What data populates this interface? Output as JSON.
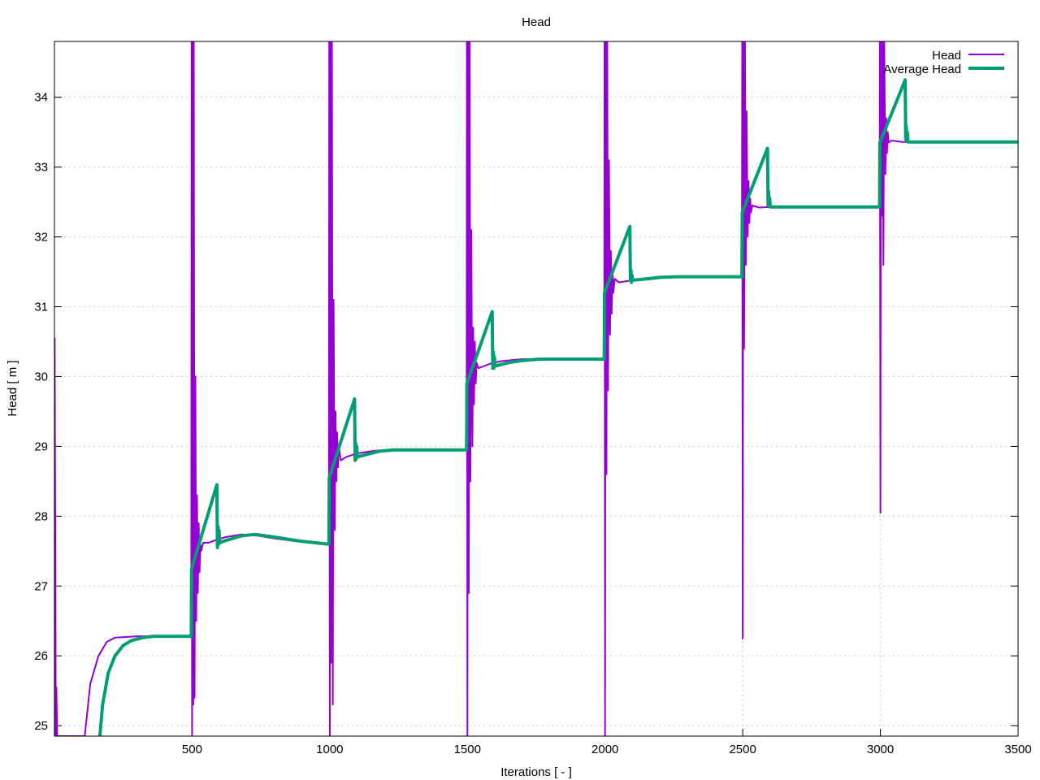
{
  "chart_data": {
    "type": "line",
    "title": "Head",
    "xlabel": "Iterations [ - ]",
    "ylabel": "Head [ m ]",
    "xlim": [
      0,
      3500
    ],
    "ylim": [
      24.85,
      34.8
    ],
    "xticks": [
      500,
      1000,
      1500,
      2000,
      2500,
      3000,
      3500
    ],
    "yticks": [
      25,
      26,
      27,
      28,
      29,
      30,
      31,
      32,
      33,
      34
    ],
    "grid": true,
    "legend_position": "top-right",
    "series": [
      {
        "name": "Head",
        "color": "#9400d3",
        "points": [
          [
            0,
            24.85
          ],
          [
            1,
            30.55
          ],
          [
            5,
            24.85
          ],
          [
            7,
            25.55
          ],
          [
            10,
            24.85
          ],
          [
            110,
            24.85
          ],
          [
            130,
            25.6
          ],
          [
            160,
            26.0
          ],
          [
            190,
            26.2
          ],
          [
            220,
            26.26
          ],
          [
            260,
            26.27
          ],
          [
            300,
            26.28
          ],
          [
            497,
            26.28
          ],
          [
            498,
            34.8
          ],
          [
            500,
            24.85
          ],
          [
            502,
            34.8
          ],
          [
            504,
            25.3
          ],
          [
            506,
            34.8
          ],
          [
            509,
            25.4
          ],
          [
            512,
            30.0
          ],
          [
            515,
            26.5
          ],
          [
            518,
            28.3
          ],
          [
            521,
            26.9
          ],
          [
            524,
            27.9
          ],
          [
            527,
            27.2
          ],
          [
            530,
            27.6
          ],
          [
            533,
            27.5
          ],
          [
            540,
            27.62
          ],
          [
            560,
            27.62
          ],
          [
            580,
            27.65
          ],
          [
            620,
            27.7
          ],
          [
            680,
            27.74
          ],
          [
            740,
            27.72
          ],
          [
            800,
            27.68
          ],
          [
            900,
            27.63
          ],
          [
            997,
            27.59
          ],
          [
            998,
            34.8
          ],
          [
            1000,
            24.85
          ],
          [
            1002,
            34.8
          ],
          [
            1005,
            25.9
          ],
          [
            1008,
            34.8
          ],
          [
            1011,
            25.3
          ],
          [
            1014,
            31.1
          ],
          [
            1018,
            27.8
          ],
          [
            1021,
            29.5
          ],
          [
            1024,
            28.5
          ],
          [
            1027,
            29.2
          ],
          [
            1030,
            28.7
          ],
          [
            1033,
            29.0
          ],
          [
            1040,
            28.8
          ],
          [
            1060,
            28.85
          ],
          [
            1100,
            28.9
          ],
          [
            1150,
            28.93
          ],
          [
            1200,
            28.95
          ],
          [
            1497,
            28.95
          ],
          [
            1498,
            34.8
          ],
          [
            1500,
            24.85
          ],
          [
            1502,
            34.8
          ],
          [
            1505,
            26.9
          ],
          [
            1508,
            34.8
          ],
          [
            1511,
            28.5
          ],
          [
            1514,
            32.1
          ],
          [
            1518,
            29.0
          ],
          [
            1521,
            30.7
          ],
          [
            1524,
            29.6
          ],
          [
            1527,
            30.5
          ],
          [
            1530,
            29.9
          ],
          [
            1533,
            30.2
          ],
          [
            1540,
            30.12
          ],
          [
            1580,
            30.18
          ],
          [
            1620,
            30.22
          ],
          [
            1700,
            30.25
          ],
          [
            1997,
            30.25
          ],
          [
            1998,
            34.8
          ],
          [
            2000,
            24.85
          ],
          [
            2002,
            34.8
          ],
          [
            2005,
            28.6
          ],
          [
            2008,
            34.8
          ],
          [
            2011,
            29.8
          ],
          [
            2014,
            33.1
          ],
          [
            2018,
            30.6
          ],
          [
            2021,
            31.8
          ],
          [
            2024,
            30.9
          ],
          [
            2027,
            31.5
          ],
          [
            2030,
            31.2
          ],
          [
            2035,
            31.4
          ],
          [
            2050,
            31.35
          ],
          [
            2100,
            31.38
          ],
          [
            2150,
            31.41
          ],
          [
            2230,
            31.43
          ],
          [
            2497,
            31.43
          ],
          [
            2498,
            34.8
          ],
          [
            2500,
            26.25
          ],
          [
            2502,
            34.8
          ],
          [
            2505,
            30.4
          ],
          [
            2508,
            34.8
          ],
          [
            2511,
            31.6
          ],
          [
            2514,
            33.8
          ],
          [
            2518,
            32.0
          ],
          [
            2521,
            32.8
          ],
          [
            2524,
            32.2
          ],
          [
            2527,
            32.55
          ],
          [
            2530,
            32.35
          ],
          [
            2535,
            32.45
          ],
          [
            2560,
            32.42
          ],
          [
            2600,
            32.43
          ],
          [
            2997,
            32.43
          ],
          [
            2998,
            34.8
          ],
          [
            3000,
            28.05
          ],
          [
            3002,
            34.8
          ],
          [
            3005,
            32.3
          ],
          [
            3008,
            34.8
          ],
          [
            3011,
            31.6
          ],
          [
            3014,
            34.8
          ],
          [
            3018,
            32.9
          ],
          [
            3021,
            33.7
          ],
          [
            3024,
            33.2
          ],
          [
            3027,
            33.5
          ],
          [
            3030,
            33.35
          ],
          [
            3040,
            33.38
          ],
          [
            3080,
            33.36
          ],
          [
            3500,
            33.36
          ]
        ]
      },
      {
        "name": "Average Head",
        "color": "#009e73",
        "points": [
          [
            165,
            24.85
          ],
          [
            175,
            25.3
          ],
          [
            195,
            25.75
          ],
          [
            220,
            26.0
          ],
          [
            250,
            26.15
          ],
          [
            280,
            26.22
          ],
          [
            320,
            26.26
          ],
          [
            360,
            26.28
          ],
          [
            497,
            26.28
          ],
          [
            498,
            27.25
          ],
          [
            590,
            28.45
          ],
          [
            592,
            27.55
          ],
          [
            594,
            27.85
          ],
          [
            596,
            27.6
          ],
          [
            598,
            27.8
          ],
          [
            600,
            27.62
          ],
          [
            620,
            27.65
          ],
          [
            680,
            27.72
          ],
          [
            730,
            27.74
          ],
          [
            800,
            27.7
          ],
          [
            900,
            27.64
          ],
          [
            997,
            27.6
          ],
          [
            998,
            28.55
          ],
          [
            1090,
            29.68
          ],
          [
            1092,
            28.8
          ],
          [
            1094,
            29.05
          ],
          [
            1096,
            28.82
          ],
          [
            1098,
            29.0
          ],
          [
            1100,
            28.85
          ],
          [
            1130,
            28.88
          ],
          [
            1180,
            28.93
          ],
          [
            1230,
            28.95
          ],
          [
            1497,
            28.95
          ],
          [
            1498,
            29.9
          ],
          [
            1590,
            30.93
          ],
          [
            1592,
            30.12
          ],
          [
            1594,
            30.35
          ],
          [
            1596,
            30.12
          ],
          [
            1598,
            30.28
          ],
          [
            1600,
            30.15
          ],
          [
            1650,
            30.2
          ],
          [
            1700,
            30.23
          ],
          [
            1760,
            30.25
          ],
          [
            1997,
            30.25
          ],
          [
            1998,
            31.2
          ],
          [
            2090,
            32.15
          ],
          [
            2092,
            31.38
          ],
          [
            2094,
            31.52
          ],
          [
            2096,
            31.35
          ],
          [
            2098,
            31.45
          ],
          [
            2100,
            31.38
          ],
          [
            2150,
            31.4
          ],
          [
            2200,
            31.42
          ],
          [
            2260,
            31.43
          ],
          [
            2497,
            31.43
          ],
          [
            2498,
            32.35
          ],
          [
            2590,
            33.27
          ],
          [
            2592,
            32.45
          ],
          [
            2594,
            32.65
          ],
          [
            2596,
            32.45
          ],
          [
            2598,
            32.55
          ],
          [
            2600,
            32.43
          ],
          [
            2997,
            32.43
          ],
          [
            2998,
            33.35
          ],
          [
            3090,
            34.25
          ],
          [
            3092,
            33.4
          ],
          [
            3094,
            33.58
          ],
          [
            3096,
            33.38
          ],
          [
            3098,
            33.5
          ],
          [
            3100,
            33.36
          ],
          [
            3500,
            33.36
          ]
        ]
      }
    ]
  }
}
